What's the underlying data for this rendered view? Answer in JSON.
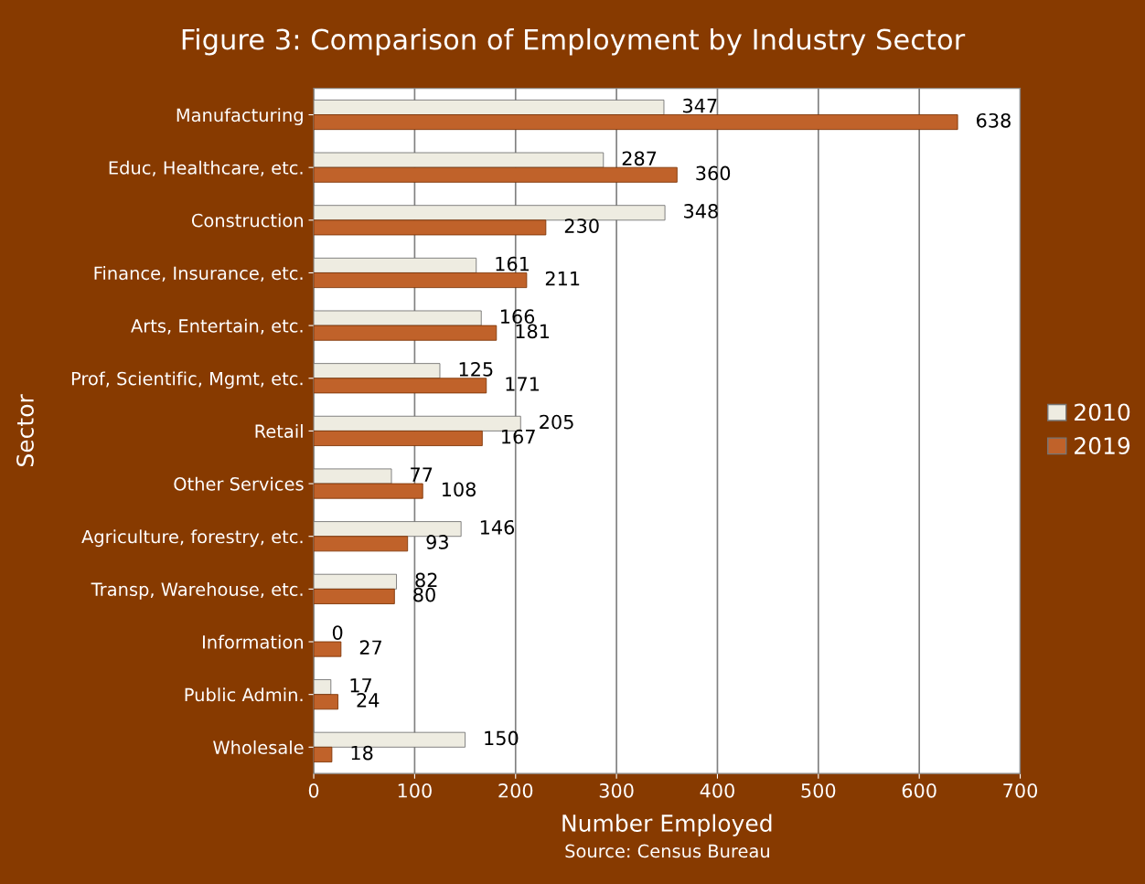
{
  "chart_data": {
    "type": "bar",
    "orientation": "horizontal",
    "title": "Figure 3: Comparison of Employment by Industry Sector",
    "xlabel": "Number Employed",
    "ylabel": "Sector",
    "annotations": [
      "Source: Census Bureau"
    ],
    "categories": [
      "Manufacturing",
      "Educ, Healthcare, etc.",
      "Construction",
      "Finance, Insurance, etc.",
      "Arts, Entertain, etc.",
      "Prof, Scientific, Mgmt, etc.",
      "Retail",
      "Other Services",
      "Agriculture, forestry, etc.",
      "Transp, Warehouse, etc.",
      "Information",
      "Public Admin.",
      "Wholesale"
    ],
    "series": [
      {
        "name": "2010",
        "color": "#eeece1",
        "values": [
          347,
          287,
          348,
          161,
          166,
          125,
          205,
          77,
          146,
          82,
          0,
          17,
          150
        ]
      },
      {
        "name": "2019",
        "color": "#c0622a",
        "values": [
          638,
          360,
          230,
          211,
          181,
          171,
          167,
          108,
          93,
          80,
          27,
          24,
          18
        ]
      }
    ],
    "xlim": [
      0,
      700
    ],
    "xticks": [
      0,
      100,
      200,
      300,
      400,
      500,
      600,
      700
    ],
    "grid": "x",
    "legend": "right",
    "data_labels": true
  }
}
